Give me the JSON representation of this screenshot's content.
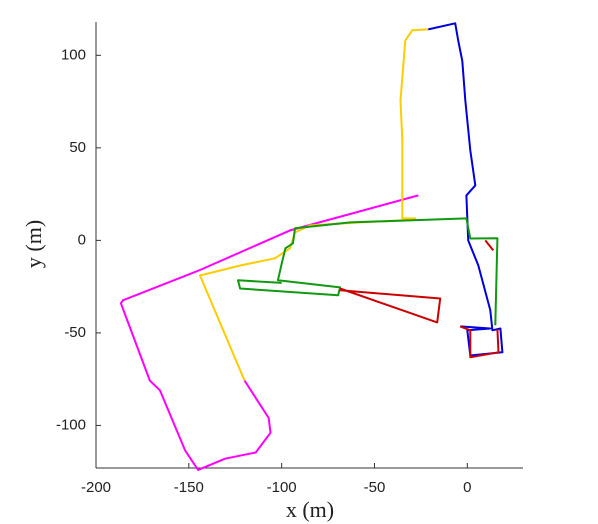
{
  "chart_data": {
    "type": "line",
    "xlabel": "x (m)",
    "ylabel": "y (m)",
    "xlim": [
      -200,
      30
    ],
    "ylim": [
      -123,
      118
    ],
    "xticks": [
      -200,
      -150,
      -100,
      -50,
      0
    ],
    "yticks": [
      -100,
      -50,
      0,
      50,
      100
    ],
    "series": [
      {
        "color": "#ff00ff",
        "x": [
          -26.4,
          -95.5,
          -144,
          -149,
          -185.5,
          -186.6,
          -171,
          -165.6,
          -152,
          -145,
          -130.5,
          -114,
          -106,
          -107,
          -120
        ],
        "values": [
          24.3,
          5.4,
          -16,
          -18,
          -32.4,
          -34,
          -75.7,
          -81,
          -113.5,
          -124,
          -118,
          -114.6,
          -104,
          -96,
          -75.7
        ]
      },
      {
        "color": "#ffcc00",
        "x": [
          -120,
          -144,
          -122,
          -103.6,
          -95.5,
          -92.8,
          -84.7,
          -57.7,
          -36,
          -28,
          -35,
          -35,
          -36,
          -33.4,
          -29.7,
          -21
        ],
        "values": [
          -75.7,
          -19,
          -13.5,
          -9.7,
          -4.3,
          4.3,
          8.1,
          9.7,
          10.8,
          11.9,
          11.9,
          54,
          75.7,
          108,
          113.5,
          114
        ]
      },
      {
        "color": "#0000dd",
        "x": [
          -21,
          -6.5,
          -4.9,
          -2.7,
          -1.1,
          1.6,
          4.3,
          -0.5,
          0.5,
          5.9,
          12.4,
          13.5,
          17.8,
          18.9,
          1.6,
          0,
          12.4,
          -3.8
        ],
        "values": [
          114,
          117.3,
          108,
          97,
          75.7,
          48.6,
          29.7,
          24.3,
          0,
          -13.5,
          -37.8,
          -48.6,
          -47.6,
          -60.5,
          -62.2,
          -48.6,
          -47.6,
          -46.5
        ]
      },
      {
        "color": "#119911",
        "x": [
          15.1,
          16.2,
          1.6,
          -0.5,
          -63,
          -92.8,
          -93.9,
          -98,
          -99.8,
          -102,
          -68.5,
          -69.6,
          -122.4,
          -123.5,
          -100
        ],
        "values": [
          -45.9,
          1.1,
          1,
          11.9,
          9.7,
          6.5,
          -1.6,
          -4.3,
          -11.9,
          -21.6,
          -25.4,
          -29.7,
          -26,
          -21.6,
          -23
        ]
      },
      {
        "color": "#cc0000",
        "x": [
          -68.5,
          -14.6,
          -16.2,
          -68.5,
          null,
          -3.8,
          1.6,
          1.6,
          16.8,
          16.2,
          null,
          9.7,
          14
        ],
        "values": [
          -27,
          -31.4,
          -44.3,
          -26,
          null,
          -46.5,
          -48.6,
          -63.2,
          -60.5,
          -48,
          null,
          0,
          -5.4
        ]
      }
    ]
  }
}
